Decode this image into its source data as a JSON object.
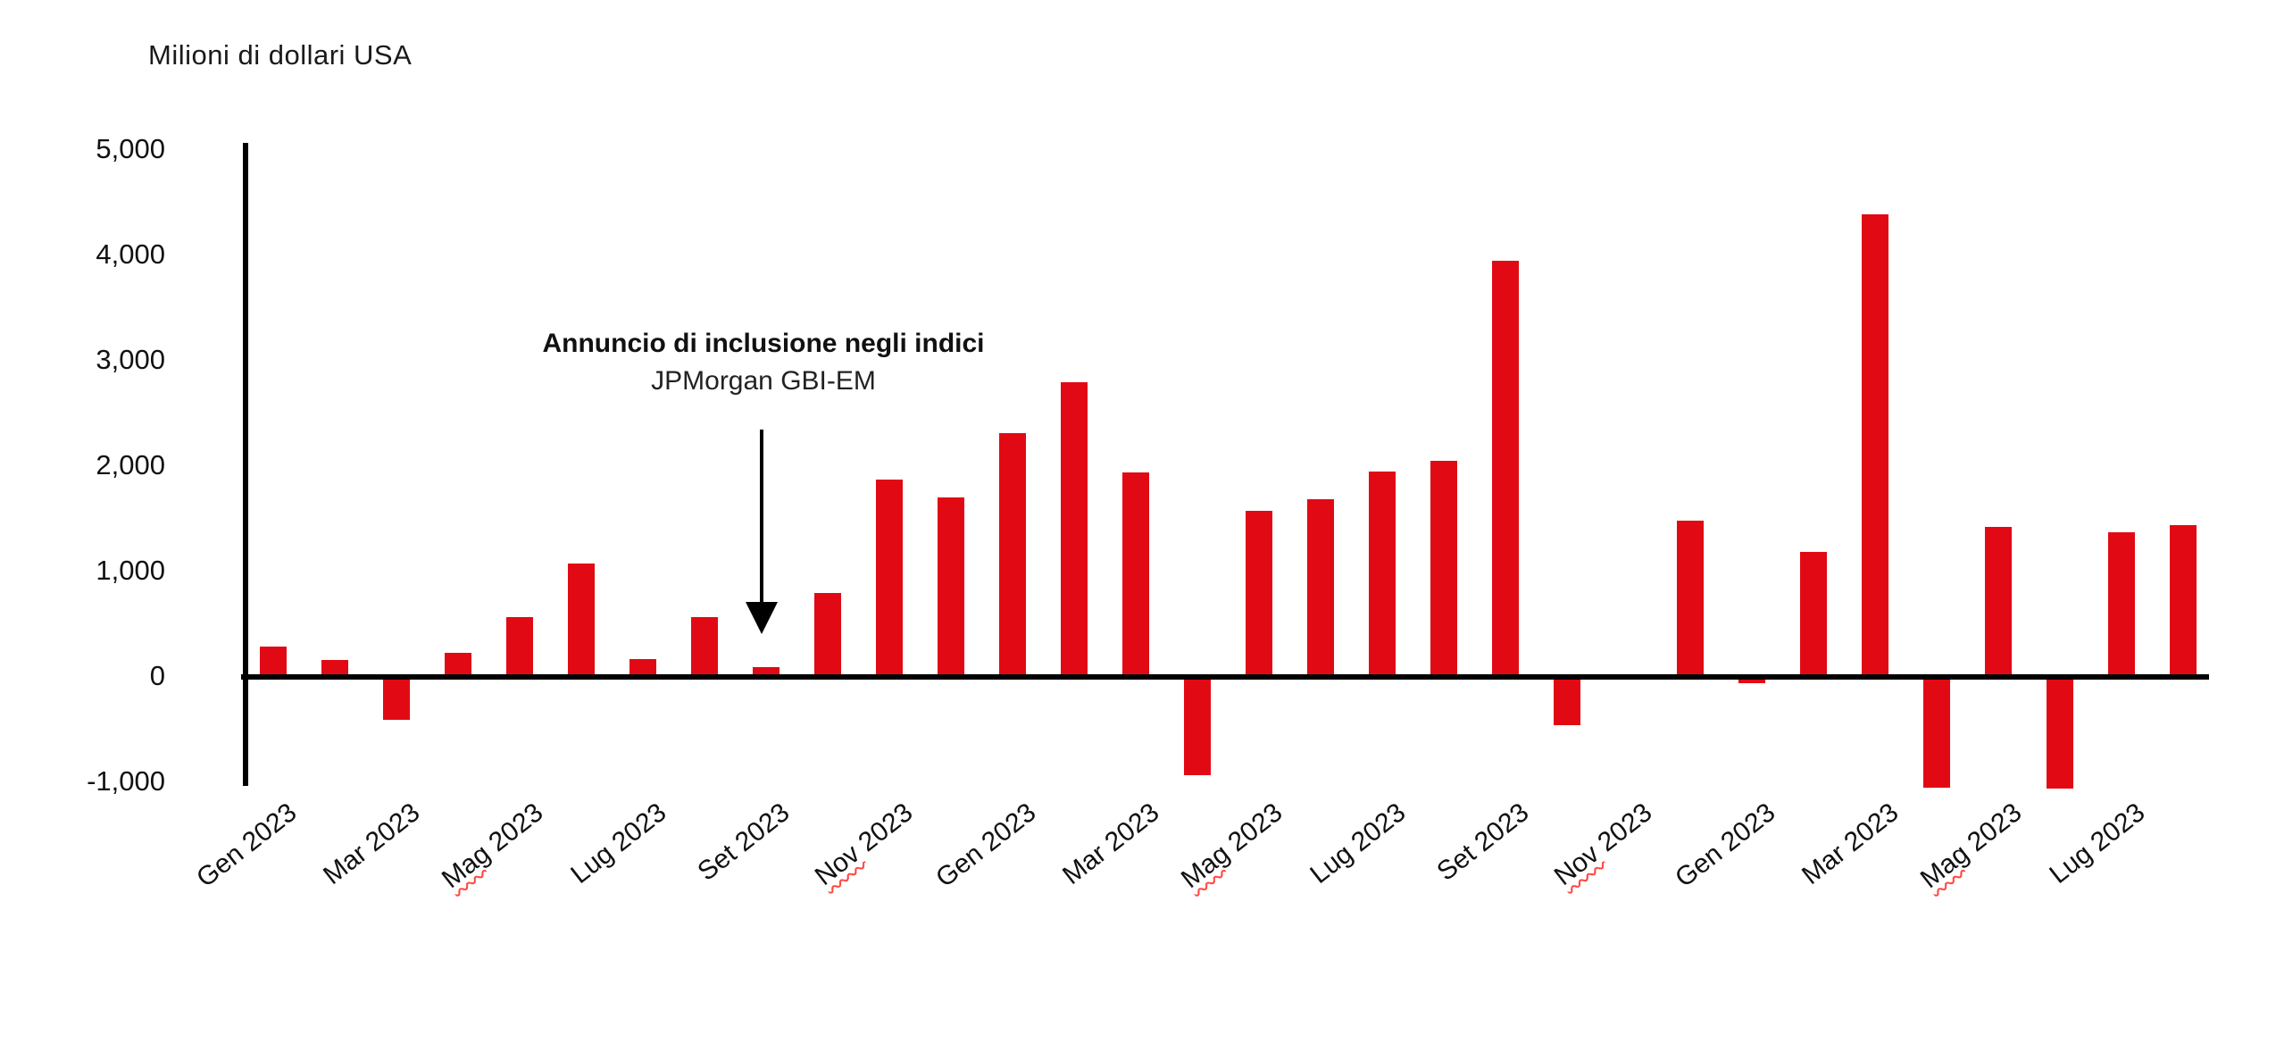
{
  "page": {
    "background_color": "#ffffff",
    "title_text": "Milioni di dollari USA"
  },
  "annotation": {
    "line1": "Annuncio di inclusione negli indici",
    "line2": "JPMorgan GBI-EM",
    "arrow_icon": "down-arrow",
    "arrow_color": "#000000"
  },
  "colors": {
    "bar": "#e10a14",
    "axis": "#000000",
    "text": "#111111",
    "spellcheck_underline": "#ff4540"
  },
  "chart_data": {
    "type": "bar",
    "title": "Milioni di dollari USA",
    "ylabel": "Milioni di dollari USA",
    "xlabel": "",
    "grid": false,
    "legend": false,
    "ylim": [
      -1000,
      5000
    ],
    "ytick_step": 1000,
    "ytick_labels": [
      "5,000",
      "4,000",
      "3,000",
      "2,000",
      "1,000",
      "0",
      "-1,000"
    ],
    "ytick_values": [
      5000,
      4000,
      3000,
      2000,
      1000,
      0,
      -1000
    ],
    "values": [
      290,
      160,
      -410,
      230,
      570,
      1080,
      170,
      570,
      90,
      800,
      1870,
      1700,
      2310,
      2800,
      1940,
      -930,
      1580,
      1690,
      1950,
      2050,
      3950,
      -460,
      0,
      1480,
      -60,
      1190,
      4390,
      -1050,
      1420,
      -1060,
      1370,
      1440
    ],
    "tick_every": 2,
    "xticks": [
      {
        "label": "Gen 2023",
        "squiggle": false
      },
      {
        "label": "Mar 2023",
        "squiggle": false
      },
      {
        "label": "Mag 2023",
        "squiggle": true
      },
      {
        "label": "Lug 2023",
        "squiggle": false
      },
      {
        "label": "Set 2023",
        "squiggle": false
      },
      {
        "label": "Nov 2023",
        "squiggle": true
      },
      {
        "label": "Gen 2023",
        "squiggle": false
      },
      {
        "label": "Mar 2023",
        "squiggle": false
      },
      {
        "label": "Mag 2023",
        "squiggle": true
      },
      {
        "label": "Lug 2023",
        "squiggle": false
      },
      {
        "label": "Set 2023",
        "squiggle": false
      },
      {
        "label": "Nov 2023",
        "squiggle": true
      },
      {
        "label": "Gen 2023",
        "squiggle": false
      },
      {
        "label": "Mar 2023",
        "squiggle": false
      },
      {
        "label": "Mag 2023",
        "squiggle": true
      },
      {
        "label": "Lug 2023",
        "squiggle": false
      }
    ],
    "annotation_text": "Annuncio di inclusione negli indici JPMorgan GBI-EM",
    "annotation_target_bar_index": 8
  }
}
